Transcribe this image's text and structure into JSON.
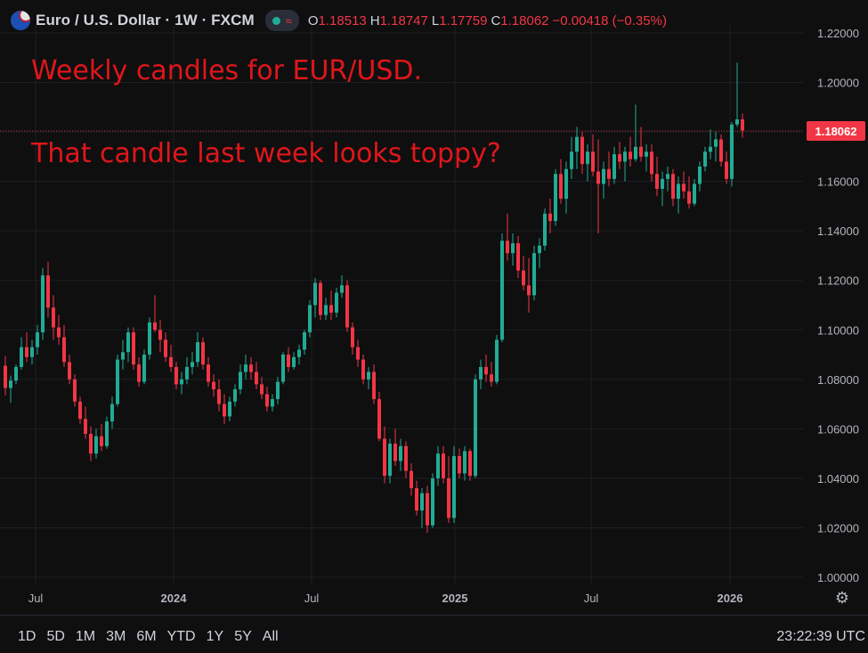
{
  "header": {
    "symbol": "Euro / U.S. Dollar · 1W · FXCM",
    "wave_glyph": "≈",
    "ohlc": [
      {
        "key": "O",
        "value": "1.18513"
      },
      {
        "key": "H",
        "value": "1.18747"
      },
      {
        "key": "L",
        "value": "1.17759"
      },
      {
        "key": "C",
        "value": "1.18062"
      },
      {
        "key": "",
        "value": "−0.00418 (−0.35%)"
      }
    ]
  },
  "annotations": {
    "line1": "Weekly candles for EUR/USD.",
    "line2": "That candle last week looks toppy?"
  },
  "bottom_bar": {
    "ranges": [
      "1D",
      "5D",
      "1M",
      "3M",
      "6M",
      "YTD",
      "1Y",
      "5Y",
      "All"
    ],
    "clock": "23:22:39 UTC"
  },
  "icons": {
    "settings": "gear-icon",
    "flag": "eur-usd-flag-icon",
    "status": "market-open-dot-icon"
  },
  "colors": {
    "up": "#22ab94",
    "down": "#f23645",
    "background": "#0f0f0f",
    "price_label": "#f23645"
  },
  "chart_data": {
    "type": "candlestick",
    "title": "Euro / U.S. Dollar · 1W · FXCM",
    "ylim": [
      1.0,
      1.22
    ],
    "y_ticks": [
      "1.00000",
      "1.02000",
      "1.04000",
      "1.06000",
      "1.08000",
      "1.10000",
      "1.12000",
      "1.14000",
      "1.16000",
      "1.18000",
      "1.20000",
      "1.22000"
    ],
    "x_ticks": [
      "Jul",
      "2024",
      "Jul",
      "2025",
      "Jul",
      "2026"
    ],
    "last_price": "1.18062",
    "grid": true,
    "candles": [
      [
        1.0855,
        1.0895,
        1.0735,
        1.0765
      ],
      [
        1.0765,
        1.0815,
        1.0705,
        1.0795
      ],
      [
        1.0795,
        1.086,
        1.078,
        1.085
      ],
      [
        1.085,
        1.097,
        1.084,
        1.093
      ],
      [
        1.093,
        1.099,
        1.087,
        1.089
      ],
      [
        1.089,
        1.096,
        1.086,
        1.093
      ],
      [
        1.093,
        1.102,
        1.09,
        1.099
      ],
      [
        1.099,
        1.125,
        1.096,
        1.122
      ],
      [
        1.122,
        1.1275,
        1.105,
        1.109
      ],
      [
        1.109,
        1.114,
        1.096,
        1.101
      ],
      [
        1.101,
        1.106,
        1.094,
        1.097
      ],
      [
        1.097,
        1.102,
        1.085,
        1.087
      ],
      [
        1.087,
        1.09,
        1.078,
        1.08
      ],
      [
        1.08,
        1.082,
        1.069,
        1.071
      ],
      [
        1.071,
        1.073,
        1.062,
        1.064
      ],
      [
        1.064,
        1.069,
        1.056,
        1.058
      ],
      [
        1.058,
        1.061,
        1.047,
        1.05
      ],
      [
        1.05,
        1.06,
        1.048,
        1.057
      ],
      [
        1.057,
        1.062,
        1.051,
        1.053
      ],
      [
        1.053,
        1.065,
        1.052,
        1.063
      ],
      [
        1.063,
        1.073,
        1.06,
        1.07
      ],
      [
        1.07,
        1.09,
        1.069,
        1.088
      ],
      [
        1.088,
        1.096,
        1.084,
        1.091
      ],
      [
        1.091,
        1.101,
        1.087,
        1.099
      ],
      [
        1.099,
        1.101,
        1.084,
        1.086
      ],
      [
        1.086,
        1.089,
        1.077,
        1.079
      ],
      [
        1.079,
        1.092,
        1.078,
        1.09
      ],
      [
        1.09,
        1.105,
        1.088,
        1.103
      ],
      [
        1.103,
        1.114,
        1.099,
        1.1
      ],
      [
        1.1,
        1.104,
        1.091,
        1.096
      ],
      [
        1.096,
        1.099,
        1.087,
        1.089
      ],
      [
        1.089,
        1.094,
        1.083,
        1.085
      ],
      [
        1.085,
        1.087,
        1.076,
        1.078
      ],
      [
        1.078,
        1.083,
        1.074,
        1.08
      ],
      [
        1.08,
        1.089,
        1.078,
        1.085
      ],
      [
        1.085,
        1.091,
        1.082,
        1.087
      ],
      [
        1.087,
        1.099,
        1.085,
        1.095
      ],
      [
        1.095,
        1.097,
        1.084,
        1.086
      ],
      [
        1.086,
        1.089,
        1.077,
        1.079
      ],
      [
        1.079,
        1.082,
        1.073,
        1.076
      ],
      [
        1.076,
        1.08,
        1.067,
        1.07
      ],
      [
        1.07,
        1.074,
        1.062,
        1.065
      ],
      [
        1.065,
        1.073,
        1.063,
        1.071
      ],
      [
        1.071,
        1.078,
        1.069,
        1.076
      ],
      [
        1.076,
        1.086,
        1.074,
        1.083
      ],
      [
        1.083,
        1.09,
        1.08,
        1.086
      ],
      [
        1.086,
        1.089,
        1.08,
        1.083
      ],
      [
        1.083,
        1.087,
        1.076,
        1.078
      ],
      [
        1.078,
        1.081,
        1.072,
        1.074
      ],
      [
        1.074,
        1.077,
        1.067,
        1.069
      ],
      [
        1.069,
        1.074,
        1.067,
        1.072
      ],
      [
        1.072,
        1.081,
        1.07,
        1.079
      ],
      [
        1.079,
        1.091,
        1.078,
        1.09
      ],
      [
        1.09,
        1.093,
        1.083,
        1.085
      ],
      [
        1.085,
        1.091,
        1.084,
        1.089
      ],
      [
        1.089,
        1.094,
        1.086,
        1.092
      ],
      [
        1.092,
        1.1,
        1.09,
        1.099
      ],
      [
        1.099,
        1.112,
        1.097,
        1.11
      ],
      [
        1.11,
        1.121,
        1.105,
        1.119
      ],
      [
        1.119,
        1.12,
        1.104,
        1.106
      ],
      [
        1.106,
        1.113,
        1.104,
        1.11
      ],
      [
        1.11,
        1.116,
        1.104,
        1.107
      ],
      [
        1.107,
        1.117,
        1.105,
        1.115
      ],
      [
        1.115,
        1.122,
        1.113,
        1.118
      ],
      [
        1.118,
        1.12,
        1.099,
        1.101
      ],
      [
        1.101,
        1.103,
        1.09,
        1.093
      ],
      [
        1.093,
        1.096,
        1.085,
        1.088
      ],
      [
        1.088,
        1.09,
        1.078,
        1.08
      ],
      [
        1.08,
        1.085,
        1.076,
        1.083
      ],
      [
        1.083,
        1.086,
        1.07,
        1.072
      ],
      [
        1.072,
        1.075,
        1.055,
        1.056
      ],
      [
        1.056,
        1.061,
        1.038,
        1.041
      ],
      [
        1.041,
        1.056,
        1.038,
        1.054
      ],
      [
        1.054,
        1.06,
        1.045,
        1.047
      ],
      [
        1.047,
        1.056,
        1.043,
        1.053
      ],
      [
        1.053,
        1.055,
        1.04,
        1.043
      ],
      [
        1.043,
        1.046,
        1.033,
        1.036
      ],
      [
        1.036,
        1.039,
        1.025,
        1.027
      ],
      [
        1.027,
        1.036,
        1.02,
        1.034
      ],
      [
        1.034,
        1.037,
        1.018,
        1.021
      ],
      [
        1.021,
        1.042,
        1.02,
        1.04
      ],
      [
        1.04,
        1.053,
        1.037,
        1.05
      ],
      [
        1.05,
        1.053,
        1.038,
        1.04
      ],
      [
        1.04,
        1.049,
        1.022,
        1.024
      ],
      [
        1.024,
        1.053,
        1.022,
        1.049
      ],
      [
        1.049,
        1.052,
        1.04,
        1.042
      ],
      [
        1.042,
        1.053,
        1.039,
        1.051
      ],
      [
        1.051,
        1.052,
        1.039,
        1.041
      ],
      [
        1.041,
        1.082,
        1.04,
        1.08
      ],
      [
        1.08,
        1.088,
        1.076,
        1.085
      ],
      [
        1.085,
        1.09,
        1.079,
        1.082
      ],
      [
        1.082,
        1.087,
        1.077,
        1.079
      ],
      [
        1.079,
        1.098,
        1.078,
        1.096
      ],
      [
        1.096,
        1.139,
        1.095,
        1.136
      ],
      [
        1.136,
        1.147,
        1.128,
        1.131
      ],
      [
        1.131,
        1.139,
        1.126,
        1.135
      ],
      [
        1.135,
        1.138,
        1.121,
        1.124
      ],
      [
        1.124,
        1.13,
        1.116,
        1.118
      ],
      [
        1.118,
        1.129,
        1.107,
        1.114
      ],
      [
        1.114,
        1.134,
        1.112,
        1.131
      ],
      [
        1.131,
        1.137,
        1.125,
        1.134
      ],
      [
        1.134,
        1.149,
        1.132,
        1.147
      ],
      [
        1.147,
        1.153,
        1.139,
        1.144
      ],
      [
        1.144,
        1.165,
        1.142,
        1.163
      ],
      [
        1.163,
        1.169,
        1.151,
        1.153
      ],
      [
        1.153,
        1.168,
        1.147,
        1.165
      ],
      [
        1.165,
        1.178,
        1.161,
        1.172
      ],
      [
        1.172,
        1.182,
        1.165,
        1.178
      ],
      [
        1.178,
        1.18,
        1.163,
        1.167
      ],
      [
        1.167,
        1.175,
        1.16,
        1.172
      ],
      [
        1.172,
        1.179,
        1.162,
        1.164
      ],
      [
        1.164,
        1.177,
        1.139,
        1.159
      ],
      [
        1.159,
        1.168,
        1.153,
        1.165
      ],
      [
        1.165,
        1.172,
        1.158,
        1.161
      ],
      [
        1.161,
        1.174,
        1.159,
        1.171
      ],
      [
        1.171,
        1.176,
        1.165,
        1.168
      ],
      [
        1.168,
        1.174,
        1.16,
        1.172
      ],
      [
        1.172,
        1.178,
        1.166,
        1.169
      ],
      [
        1.169,
        1.191,
        1.168,
        1.174
      ],
      [
        1.174,
        1.182,
        1.168,
        1.17
      ],
      [
        1.17,
        1.175,
        1.164,
        1.172
      ],
      [
        1.172,
        1.175,
        1.16,
        1.163
      ],
      [
        1.163,
        1.17,
        1.154,
        1.157
      ],
      [
        1.157,
        1.164,
        1.15,
        1.161
      ],
      [
        1.161,
        1.166,
        1.156,
        1.163
      ],
      [
        1.163,
        1.165,
        1.15,
        1.153
      ],
      [
        1.153,
        1.162,
        1.147,
        1.159
      ],
      [
        1.159,
        1.164,
        1.153,
        1.156
      ],
      [
        1.156,
        1.162,
        1.149,
        1.151
      ],
      [
        1.151,
        1.161,
        1.15,
        1.159
      ],
      [
        1.159,
        1.168,
        1.156,
        1.166
      ],
      [
        1.166,
        1.174,
        1.164,
        1.172
      ],
      [
        1.172,
        1.181,
        1.169,
        1.174
      ],
      [
        1.174,
        1.18,
        1.168,
        1.177
      ],
      [
        1.177,
        1.179,
        1.166,
        1.168
      ],
      [
        1.168,
        1.172,
        1.159,
        1.161
      ],
      [
        1.161,
        1.184,
        1.158,
        1.183
      ],
      [
        1.183,
        1.208,
        1.182,
        1.1851
      ],
      [
        1.1851,
        1.1875,
        1.1776,
        1.1806
      ]
    ]
  }
}
